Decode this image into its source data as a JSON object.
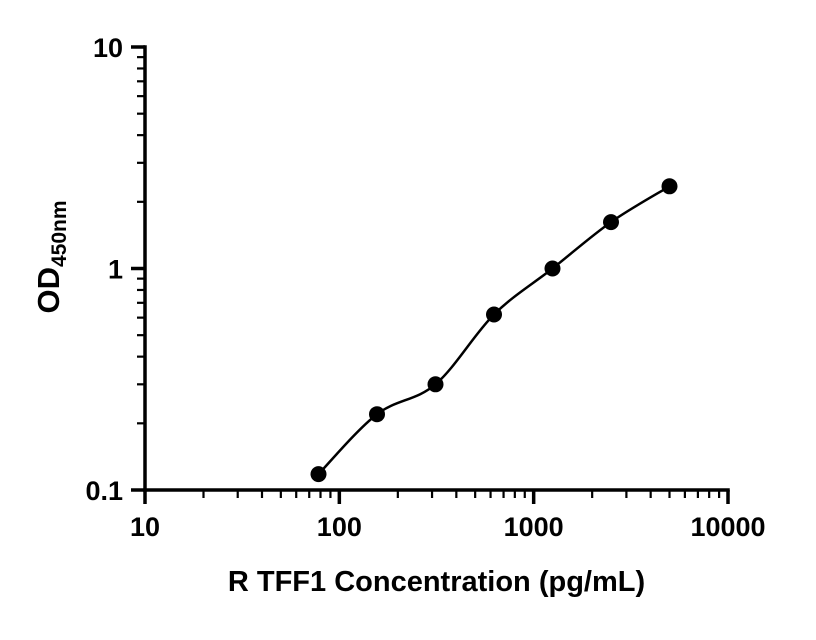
{
  "chart_data": {
    "type": "scatter",
    "title": "",
    "xlabel": "R TFF1 Concentration (pg/mL)",
    "ylabel": "OD",
    "ylabel_subscript": "450nm",
    "xscale": "log",
    "yscale": "log",
    "xlim": [
      10,
      10000
    ],
    "ylim": [
      0.1,
      10
    ],
    "x_tick_values": [
      10,
      100,
      1000,
      10000
    ],
    "x_tick_labels": [
      "10",
      "100",
      "1000",
      "10000"
    ],
    "y_tick_values": [
      0.1,
      1,
      10
    ],
    "y_tick_labels": [
      "0.1",
      "1",
      "10"
    ],
    "minor_ticks": "log",
    "grid": false,
    "legend": false,
    "background_color": "#ffffff",
    "axis_color": "#000000",
    "series": [
      {
        "x": [
          78.125,
          156.25,
          312.5,
          625,
          1250,
          2500,
          5000
        ],
        "y": [
          0.118,
          0.22,
          0.3,
          0.62,
          1.0,
          1.62,
          2.35
        ],
        "marker": "filled-circle",
        "marker_color": "#000000",
        "line_style": "smooth-curve",
        "line_color": "#000000"
      }
    ]
  }
}
